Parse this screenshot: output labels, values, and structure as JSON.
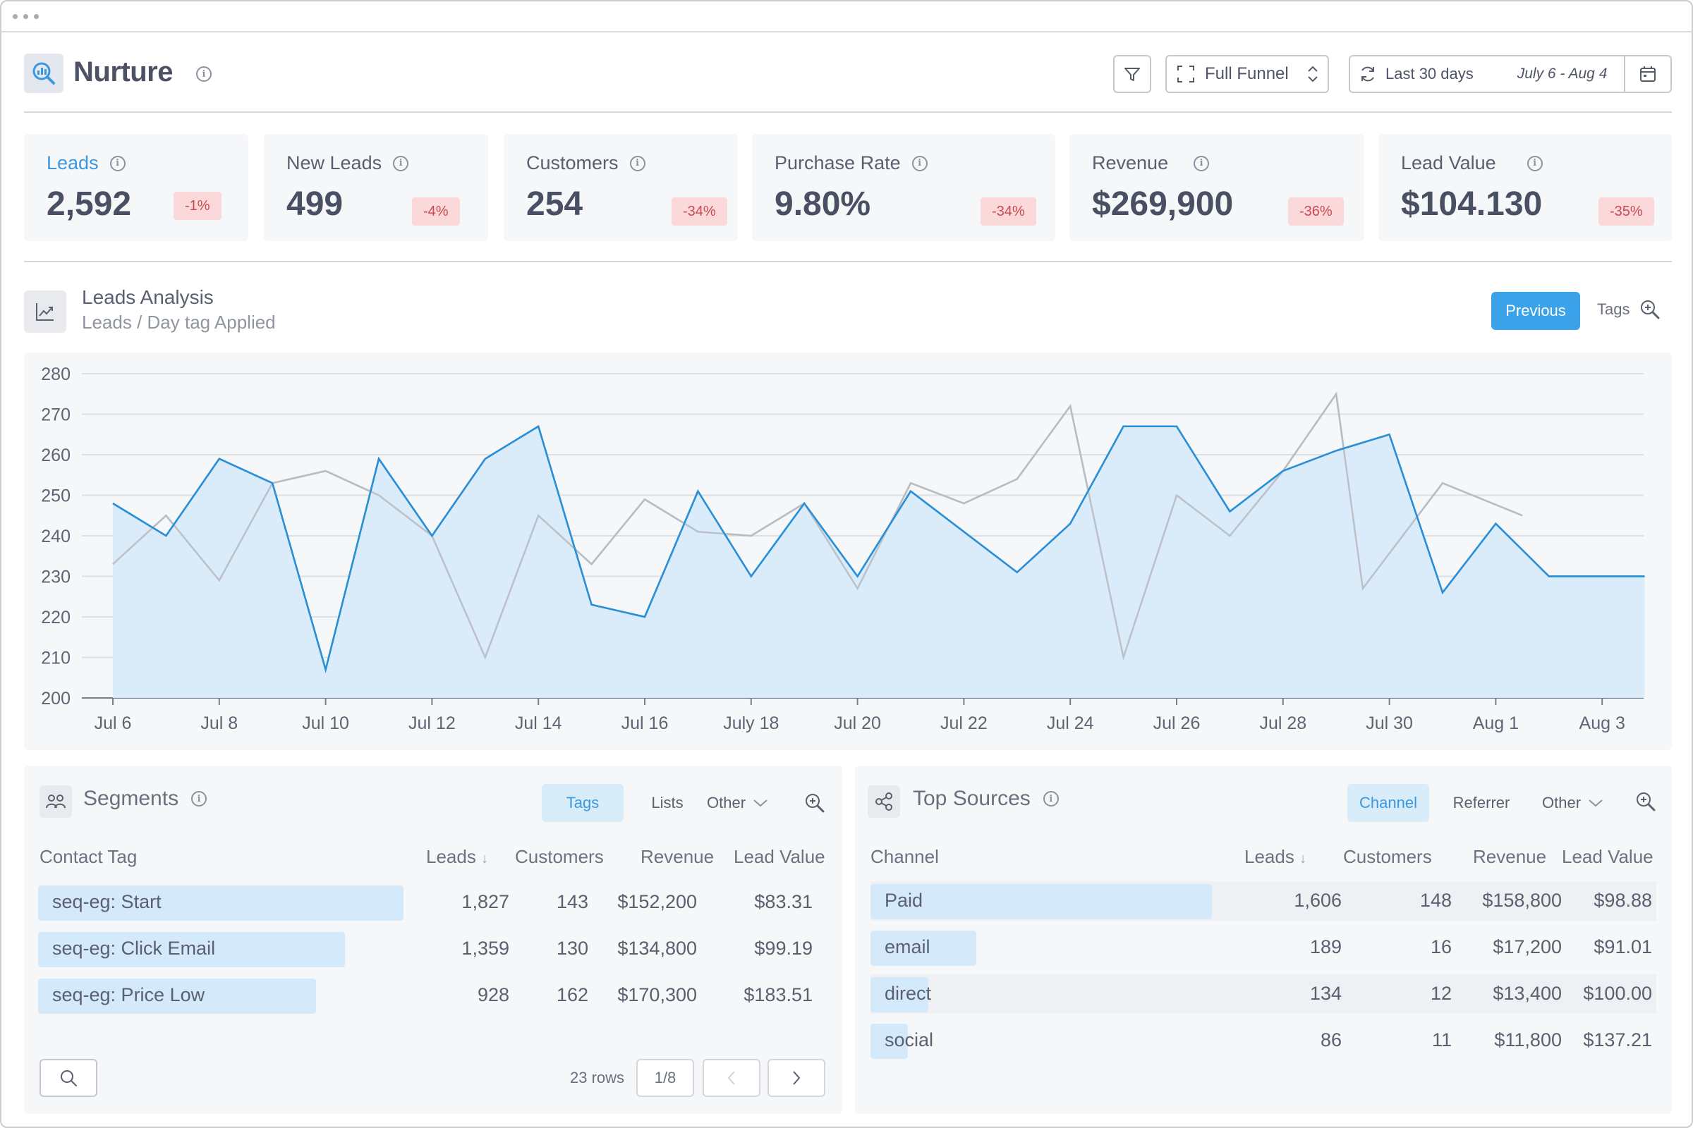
{
  "header": {
    "title": "Nurture",
    "funnel_label": "Full Funnel",
    "range_label": "Last 30 days",
    "range_dates": "July 6 - Aug 4"
  },
  "kpis": [
    {
      "label": "Leads",
      "value": "2,592",
      "change": "-1%"
    },
    {
      "label": "New Leads",
      "value": "499",
      "change": "-4%"
    },
    {
      "label": "Customers",
      "value": "254",
      "change": "-34%"
    },
    {
      "label": "Purchase Rate",
      "value": "9.80%",
      "change": "-34%"
    },
    {
      "label": "Revenue",
      "value": "$269,900",
      "change": "-36%"
    },
    {
      "label": "Lead Value",
      "value": "$104.130",
      "change": "-35%"
    }
  ],
  "analysis": {
    "title": "Leads Analysis",
    "subtitle": "Leads / Day tag Applied",
    "previous_label": "Previous",
    "tags_label": "Tags"
  },
  "chart_data": {
    "type": "area",
    "ylim": [
      200,
      280
    ],
    "yticks": [
      200,
      210,
      220,
      230,
      240,
      250,
      260,
      270,
      280
    ],
    "xtick_labels": [
      {
        "day": 0,
        "label": "Jul 6"
      },
      {
        "day": 2,
        "label": "Jul 8"
      },
      {
        "day": 4,
        "label": "Jul 10"
      },
      {
        "day": 6,
        "label": "Jul 12"
      },
      {
        "day": 8,
        "label": "Jul 14"
      },
      {
        "day": 10,
        "label": "Jul 16"
      },
      {
        "day": 12,
        "label": "July 18"
      },
      {
        "day": 14,
        "label": "Jul 20"
      },
      {
        "day": 16,
        "label": "Jul 22"
      },
      {
        "day": 18,
        "label": "Jul 24"
      },
      {
        "day": 20,
        "label": "Jul 26"
      },
      {
        "day": 22,
        "label": "Jul 28"
      },
      {
        "day": 24,
        "label": "Jul 30"
      },
      {
        "day": 26,
        "label": "Aug 1"
      },
      {
        "day": 28,
        "label": "Aug 3"
      }
    ],
    "series": [
      {
        "color": "#2b8fd6",
        "fill": "#d7eaf9",
        "values": [
          248,
          240,
          259,
          253,
          207,
          259,
          240,
          259,
          267,
          223,
          220,
          251,
          230,
          248,
          230,
          251,
          231,
          243,
          267,
          267,
          246,
          256,
          261,
          265,
          226,
          243,
          230,
          230
        ]
      },
      {
        "color": "#b9bcc3",
        "values": [
          233,
          245,
          229,
          253,
          256,
          250,
          240,
          210,
          245,
          233,
          249,
          241,
          240,
          248,
          227,
          253,
          248,
          254,
          272,
          210,
          250,
          240,
          256,
          275,
          227,
          253,
          245
        ]
      }
    ],
    "series_days": [
      [
        0,
        1,
        2,
        3,
        4,
        5,
        6,
        7,
        8,
        9,
        10,
        11,
        12,
        13,
        14,
        15,
        17,
        18,
        19,
        20,
        21,
        22,
        23,
        24,
        25,
        26,
        27,
        28.8
      ],
      [
        0,
        1,
        2,
        3,
        4,
        5,
        6,
        7,
        8,
        9,
        10,
        11,
        12,
        13,
        14,
        15,
        16,
        17,
        18,
        19,
        20,
        21,
        22,
        23,
        23.5,
        25,
        26.5
      ]
    ]
  },
  "segments": {
    "title": "Segments",
    "tabs": [
      "Tags",
      "Lists",
      "Other"
    ],
    "columns": [
      "Contact Tag",
      "Leads",
      "Customers",
      "Revenue",
      "Lead Value"
    ],
    "rows": [
      {
        "name": "seq-eg: Start",
        "leads": "1,827",
        "customers": "143",
        "revenue": "$152,200",
        "lead_value": "$83.31",
        "share": 1.0
      },
      {
        "name": "seq-eg: Click Email",
        "leads": "1,359",
        "customers": "130",
        "revenue": "$134,800",
        "lead_value": "$99.19",
        "share": 0.84
      },
      {
        "name": "seq-eg: Price Low",
        "leads": "928",
        "customers": "162",
        "revenue": "$170,300",
        "lead_value": "$183.51",
        "share": 0.76
      }
    ],
    "row_count": "23 rows",
    "page": "1/8"
  },
  "sources": {
    "title": "Top Sources",
    "tabs": [
      "Channel",
      "Referrer",
      "Other"
    ],
    "columns": [
      "Channel",
      "Leads",
      "Customers",
      "Revenue",
      "Lead Value"
    ],
    "rows": [
      {
        "name": "Paid",
        "leads": "1,606",
        "customers": "148",
        "revenue": "$158,800",
        "lead_value": "$98.88",
        "share": 1.0
      },
      {
        "name": "email",
        "leads": "189",
        "customers": "16",
        "revenue": "$17,200",
        "lead_value": "$91.01",
        "share": 0.31
      },
      {
        "name": "direct",
        "leads": "134",
        "customers": "12",
        "revenue": "$13,400",
        "lead_value": "$100.00",
        "share": 0.17
      },
      {
        "name": "social",
        "leads": "86",
        "customers": "11",
        "revenue": "$11,800",
        "lead_value": "$137.21",
        "share": 0.11
      }
    ]
  }
}
